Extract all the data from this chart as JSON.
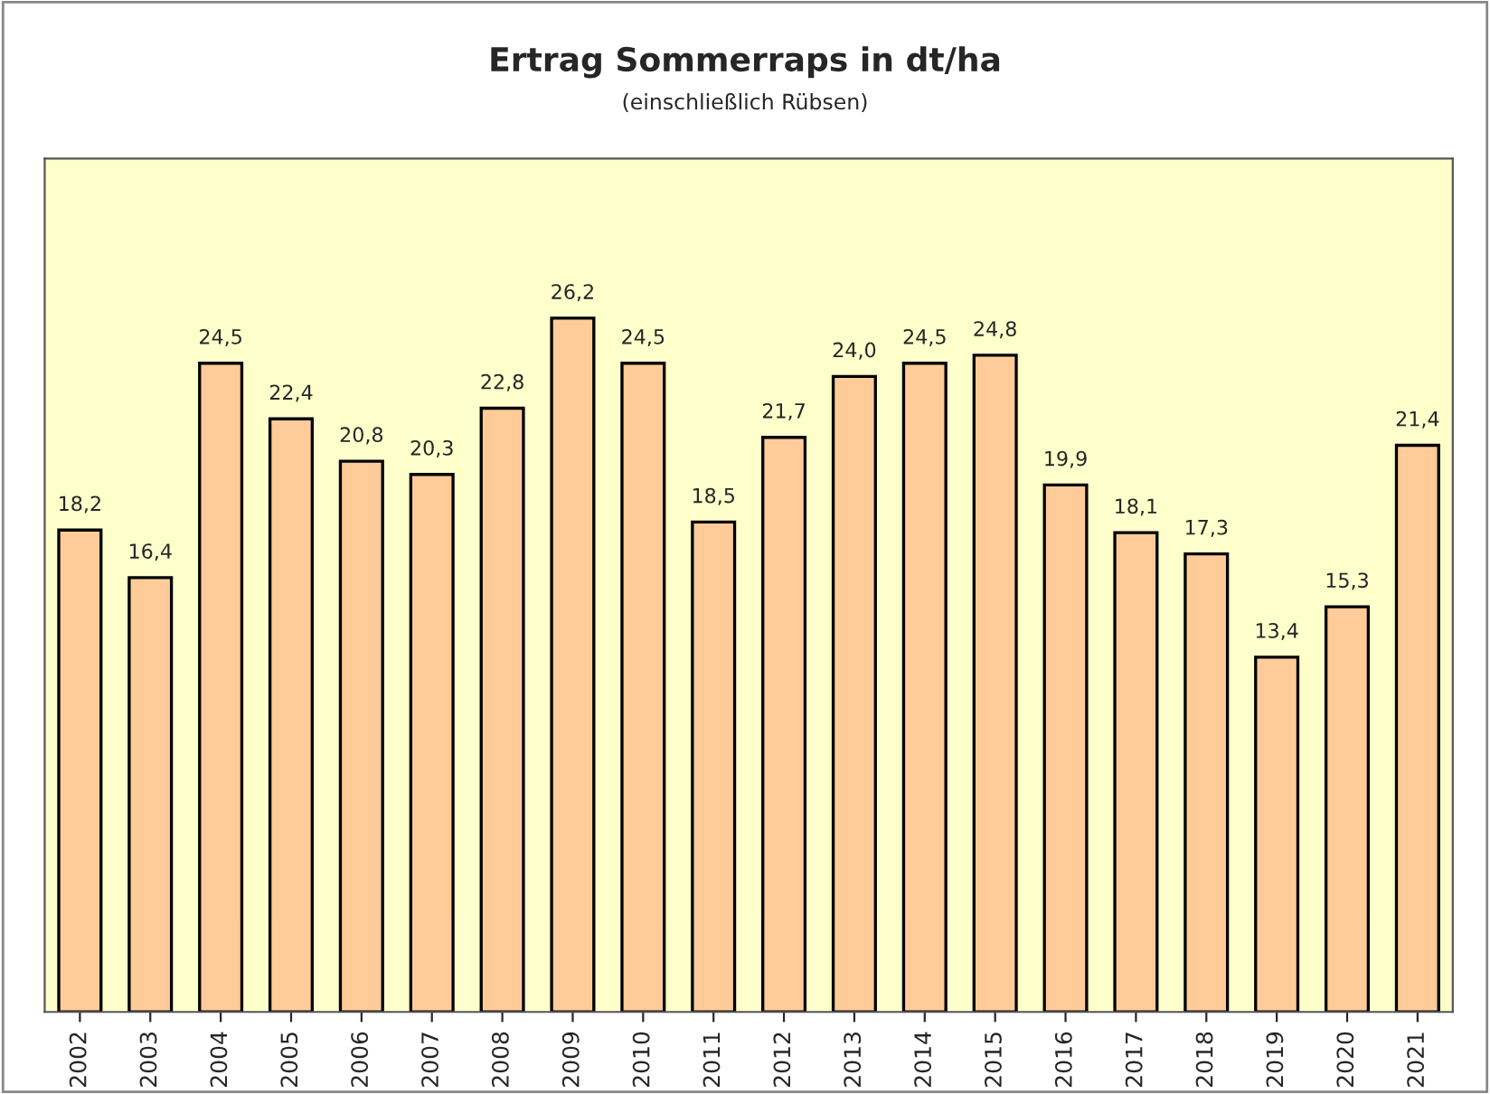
{
  "chart_data": {
    "type": "bar",
    "title": "Ertrag Sommerraps in dt/ha",
    "subtitle": "(einschließlich Rübsen)",
    "categories": [
      "2002",
      "2003",
      "2004",
      "2005",
      "2006",
      "2007",
      "2008",
      "2009",
      "2010",
      "2011",
      "2012",
      "2013",
      "2014",
      "2015",
      "2016",
      "2017",
      "2018",
      "2019",
      "2020",
      "2021"
    ],
    "values": [
      18.2,
      16.4,
      24.5,
      22.4,
      20.8,
      20.3,
      22.8,
      26.2,
      24.5,
      18.5,
      21.7,
      24.0,
      24.5,
      24.8,
      19.9,
      18.1,
      17.3,
      13.4,
      15.3,
      21.4
    ],
    "value_labels": [
      "18,2",
      "16,4",
      "24,5",
      "22,4",
      "20,8",
      "20,3",
      "22,8",
      "26,2",
      "24,5",
      "18,5",
      "21,7",
      "24,0",
      "24,5",
      "24,8",
      "19,9",
      "18,1",
      "17,3",
      "13,4",
      "15,3",
      "21,4"
    ],
    "color": "#ffcc99",
    "tick_labels": "x",
    "grid": false,
    "legend": false
  }
}
